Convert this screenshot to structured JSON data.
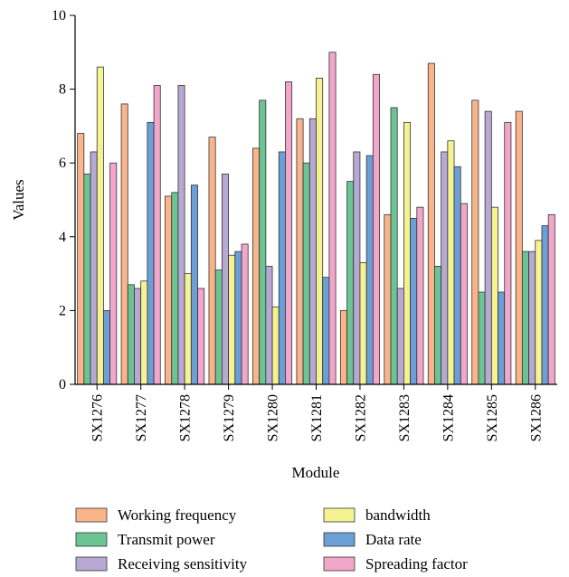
{
  "chart_data": {
    "type": "bar",
    "title": "",
    "xlabel": "Module",
    "ylabel": "Values",
    "ylim": [
      0,
      10
    ],
    "yticks": [
      0,
      2,
      4,
      6,
      8,
      10
    ],
    "grid": false,
    "legend_position": "bottom",
    "categories": [
      "SX1276",
      "SX1277",
      "SX1278",
      "SX1279",
      "SX1280",
      "SX1281",
      "SX1282",
      "SX1283",
      "SX1284",
      "SX1285",
      "SX1286"
    ],
    "series": [
      {
        "name": "Working frequency",
        "color": "#f9b48a",
        "values": [
          6.8,
          7.6,
          5.1,
          6.7,
          6.4,
          7.2,
          2.0,
          4.6,
          8.7,
          7.7,
          7.4
        ]
      },
      {
        "name": "Transmit power",
        "color": "#6cc495",
        "values": [
          5.7,
          2.7,
          5.2,
          3.1,
          7.7,
          6.0,
          5.5,
          7.5,
          3.2,
          2.5,
          3.6
        ]
      },
      {
        "name": "Receiving sensitivity",
        "color": "#b7a9d3",
        "values": [
          6.3,
          2.6,
          8.1,
          5.7,
          3.2,
          7.2,
          6.3,
          2.6,
          6.3,
          7.4,
          3.6
        ]
      },
      {
        "name": "bandwidth",
        "color": "#f5f291",
        "values": [
          8.6,
          2.8,
          3.0,
          3.5,
          2.1,
          8.3,
          3.3,
          7.1,
          6.6,
          4.8,
          3.9
        ]
      },
      {
        "name": "Data rate",
        "color": "#6c9fd6",
        "values": [
          2.0,
          7.1,
          5.4,
          3.6,
          6.3,
          2.9,
          6.2,
          4.5,
          5.9,
          2.5,
          4.3
        ]
      },
      {
        "name": "Spreading factor",
        "color": "#f2a6c9",
        "values": [
          6.0,
          8.1,
          2.6,
          3.8,
          8.2,
          9.0,
          8.4,
          4.8,
          4.9,
          7.1,
          4.6
        ]
      }
    ]
  }
}
